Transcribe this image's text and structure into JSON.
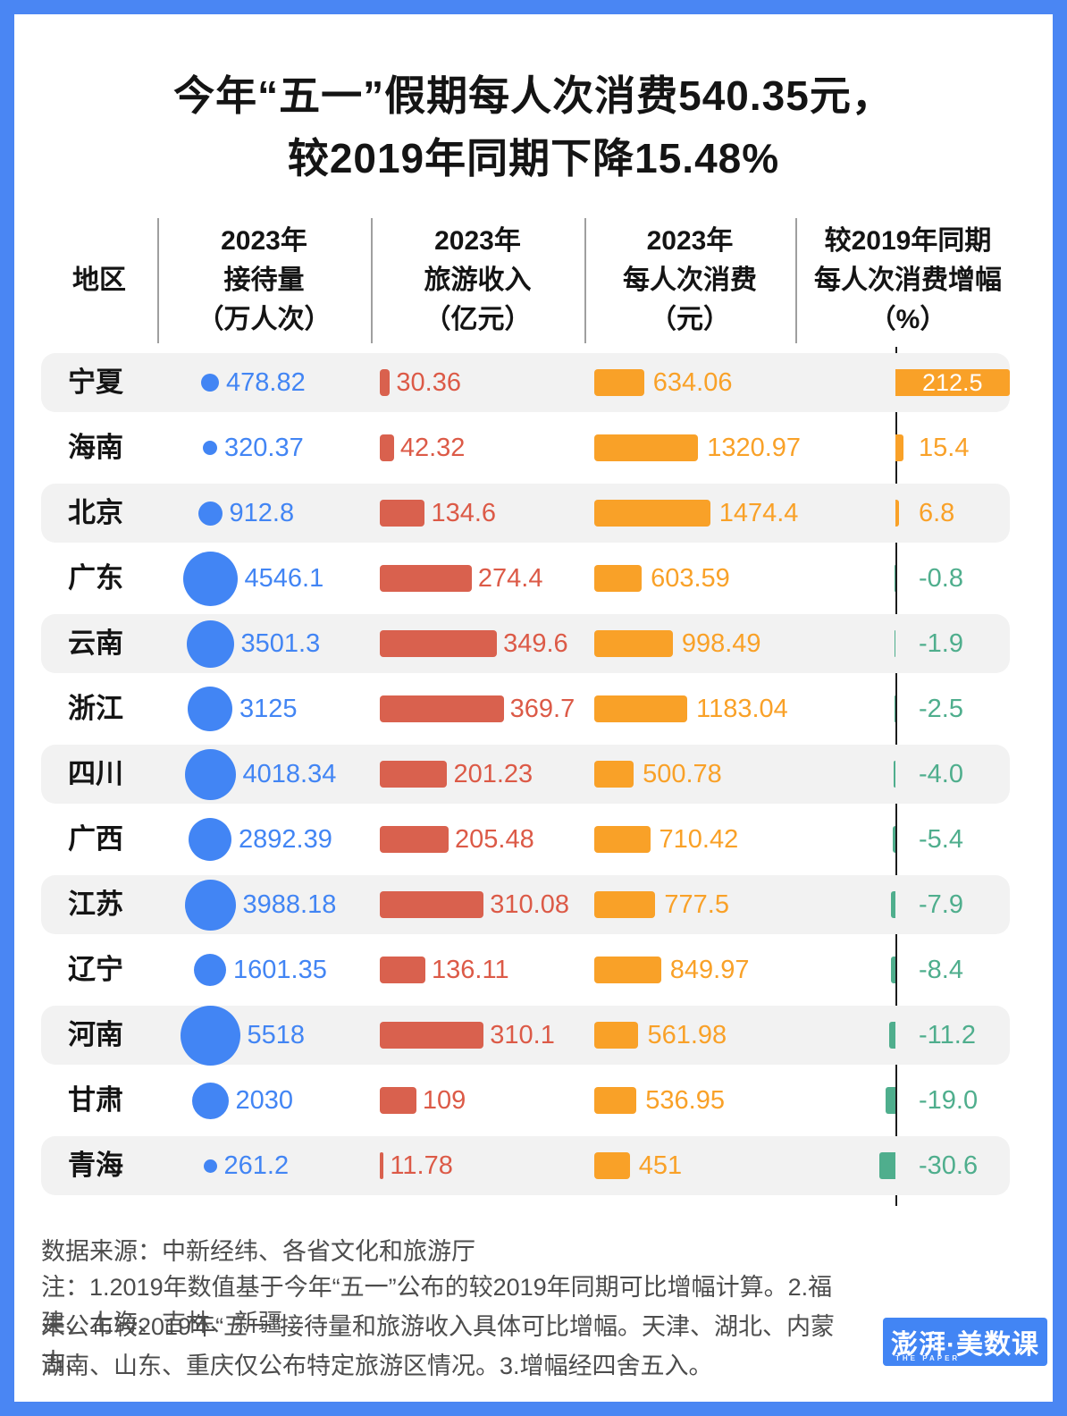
{
  "title": {
    "line1": "今年“五一”假期每人次消费540.35元，",
    "line2": "较2019年同期下降15.48%"
  },
  "header": {
    "region": "地区",
    "cols": [
      {
        "lines": [
          "2023年",
          "接待量",
          "（万人次）"
        ]
      },
      {
        "lines": [
          "2023年",
          "旅游收入",
          "（亿元）"
        ]
      },
      {
        "lines": [
          "2023年",
          "每人次消费",
          "（元）"
        ]
      },
      {
        "lines": [
          "较2019年同期",
          "每人次消费增幅",
          "（%）"
        ]
      }
    ]
  },
  "rows": [
    {
      "region": "宁夏",
      "reception": "478.82",
      "revenue": "30.36",
      "spend": "634.06",
      "growth": "212.5"
    },
    {
      "region": "海南",
      "reception": "320.37",
      "revenue": "42.32",
      "spend": "1320.97",
      "growth": "15.4"
    },
    {
      "region": "北京",
      "reception": "912.8",
      "revenue": "134.6",
      "spend": "1474.4",
      "growth": "6.8"
    },
    {
      "region": "广东",
      "reception": "4546.1",
      "revenue": "274.4",
      "spend": "603.59",
      "growth": "-0.8"
    },
    {
      "region": "云南",
      "reception": "3501.3",
      "revenue": "349.6",
      "spend": "998.49",
      "growth": "-1.9"
    },
    {
      "region": "浙江",
      "reception": "3125",
      "revenue": "369.7",
      "spend": "1183.04",
      "growth": "-2.5"
    },
    {
      "region": "四川",
      "reception": "4018.34",
      "revenue": "201.23",
      "spend": "500.78",
      "growth": "-4.0"
    },
    {
      "region": "广西",
      "reception": "2892.39",
      "revenue": "205.48",
      "spend": "710.42",
      "growth": "-5.4"
    },
    {
      "region": "江苏",
      "reception": "3988.18",
      "revenue": "310.08",
      "spend": "777.5",
      "growth": "-7.9"
    },
    {
      "region": "辽宁",
      "reception": "1601.35",
      "revenue": "136.11",
      "spend": "849.97",
      "growth": "-8.4"
    },
    {
      "region": "河南",
      "reception": "5518",
      "revenue": "310.1",
      "spend": "561.98",
      "growth": "-11.2"
    },
    {
      "region": "甘肃",
      "reception": "2030",
      "revenue": "109",
      "spend": "536.95",
      "growth": "-19.0"
    },
    {
      "region": "青海",
      "reception": "261.2",
      "revenue": "11.78",
      "spend": "451",
      "growth": "-30.6"
    }
  ],
  "footer": {
    "source": "数据来源：中新经纬、各省文化和旅游厅",
    "notes": [
      "注：1.2019年数值基于今年“五一”公布的较2019年同期可比增幅计算。2.福建、上海、吉林、新疆",
      "未公布较2019年“五一”接待量和旅游收入具体可比增幅。天津、湖北、内蒙古、",
      "湖南、山东、重庆仅公布特定旅游区情况。3.增幅经四舍五入。"
    ]
  },
  "logo": {
    "text": "澎湃·美数课",
    "subtext": "THE PAPER"
  },
  "colors": {
    "frame_blue": "#4A86F3",
    "circle_blue": "#4285F4",
    "revenue_red": "#D9614E",
    "spend_orange": "#F9A128",
    "growth_positive_orange": "#F9A128",
    "growth_negative_green": "#4FAE8D",
    "row_stripe_gray": "#F2F2F2",
    "axis_black": "#1c1c1c"
  },
  "chart_data": {
    "type": "table",
    "title": "今年“五一”假期每人次消费540.35元，较2019年同期下降15.48%",
    "categories": [
      "宁夏",
      "海南",
      "北京",
      "广东",
      "云南",
      "浙江",
      "四川",
      "广西",
      "江苏",
      "辽宁",
      "河南",
      "甘肃",
      "青海"
    ],
    "series": [
      {
        "name": "2023年接待量（万人次）",
        "encoding": "circle-area",
        "color": "#4285F4",
        "values": [
          478.82,
          320.37,
          912.8,
          4546.1,
          3501.3,
          3125,
          4018.34,
          2892.39,
          3988.18,
          1601.35,
          5518,
          2030,
          261.2
        ]
      },
      {
        "name": "2023年旅游收入（亿元）",
        "encoding": "bar",
        "color": "#D9614E",
        "values": [
          30.36,
          42.32,
          134.6,
          274.4,
          349.6,
          369.7,
          201.23,
          205.48,
          310.08,
          136.11,
          310.1,
          109,
          11.78
        ]
      },
      {
        "name": "2023年每人次消费（元）",
        "encoding": "bar",
        "color": "#F9A128",
        "values": [
          634.06,
          1320.97,
          1474.4,
          603.59,
          998.49,
          1183.04,
          500.78,
          710.42,
          777.5,
          849.97,
          561.98,
          536.95,
          451
        ]
      },
      {
        "name": "较2019年同期每人次消费增幅（%）",
        "encoding": "diverging-bar",
        "color_positive": "#F9A128",
        "color_negative": "#4FAE8D",
        "values": [
          212.5,
          15.4,
          6.8,
          -0.8,
          -1.9,
          -2.5,
          -4.0,
          -5.4,
          -7.9,
          -8.4,
          -11.2,
          -19.0,
          -30.6
        ]
      }
    ],
    "source": "数据来源：中新经纬、各省文化和旅游厅",
    "legend_position": "none",
    "grid": false
  }
}
